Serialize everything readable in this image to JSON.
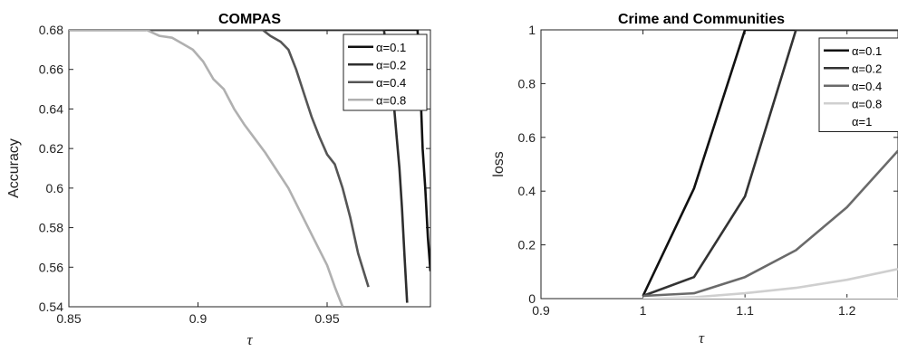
{
  "chart_data": [
    {
      "type": "line",
      "title": "COMPAS",
      "xlabel": "τ",
      "ylabel": "Accuracy",
      "xlim": [
        0.85,
        0.99
      ],
      "ylim": [
        0.54,
        0.68
      ],
      "xticks": [
        "0.85",
        "0.9",
        "0.95"
      ],
      "yticks": [
        "0.54",
        "0.56",
        "0.58",
        "0.6",
        "0.62",
        "0.64",
        "0.66",
        "0.68"
      ],
      "legend_position": "top-right",
      "series": [
        {
          "name": "α=0.1",
          "color": "#111111",
          "x": [
            0.85,
            0.985,
            0.986,
            0.987,
            0.988,
            0.989,
            0.99
          ],
          "y": [
            0.68,
            0.68,
            0.655,
            0.62,
            0.6,
            0.575,
            0.558
          ]
        },
        {
          "name": "α=0.2",
          "color": "#2e2e2e",
          "x": [
            0.85,
            0.972,
            0.974,
            0.976,
            0.977,
            0.978,
            0.979,
            0.98,
            0.981
          ],
          "y": [
            0.68,
            0.68,
            0.66,
            0.64,
            0.625,
            0.61,
            0.59,
            0.565,
            0.542
          ]
        },
        {
          "name": "α=0.4",
          "color": "#555555",
          "x": [
            0.85,
            0.925,
            0.928,
            0.932,
            0.935,
            0.938,
            0.941,
            0.944,
            0.947,
            0.95,
            0.953,
            0.956,
            0.959,
            0.962,
            0.966
          ],
          "y": [
            0.68,
            0.68,
            0.677,
            0.674,
            0.67,
            0.66,
            0.648,
            0.636,
            0.626,
            0.617,
            0.612,
            0.6,
            0.585,
            0.567,
            0.55
          ]
        },
        {
          "name": "α=0.8",
          "color": "#b0b0b0",
          "x": [
            0.85,
            0.88,
            0.885,
            0.89,
            0.894,
            0.898,
            0.902,
            0.906,
            0.91,
            0.914,
            0.918,
            0.922,
            0.926,
            0.93,
            0.935,
            0.94,
            0.945,
            0.95,
            0.953,
            0.956
          ],
          "y": [
            0.68,
            0.68,
            0.677,
            0.676,
            0.673,
            0.67,
            0.664,
            0.655,
            0.65,
            0.64,
            0.632,
            0.625,
            0.618,
            0.61,
            0.6,
            0.587,
            0.574,
            0.561,
            0.55,
            0.54
          ]
        }
      ]
    },
    {
      "type": "line",
      "title": "Crime and Communities",
      "xlabel": "τ",
      "ylabel": "loss",
      "xlim": [
        0.9,
        1.25
      ],
      "ylim": [
        0,
        1
      ],
      "xticks": [
        "0.9",
        "1",
        "1.1",
        "1.2"
      ],
      "yticks": [
        "0",
        "0.2",
        "0.4",
        "0.6",
        "0.8",
        "1"
      ],
      "legend_position": "top-right",
      "series": [
        {
          "name": "α=0.1",
          "color": "#111111",
          "x": [
            1.0,
            1.05,
            1.1,
            1.25
          ],
          "y": [
            0.01,
            0.41,
            1.0,
            1.0
          ]
        },
        {
          "name": "α=0.2",
          "color": "#333333",
          "x": [
            1.0,
            1.05,
            1.1,
            1.15,
            1.25
          ],
          "y": [
            0.01,
            0.08,
            0.38,
            1.0,
            1.0
          ]
        },
        {
          "name": "α=0.4",
          "color": "#6a6a6a",
          "x": [
            1.0,
            1.05,
            1.1,
            1.15,
            1.2,
            1.25
          ],
          "y": [
            0.01,
            0.02,
            0.08,
            0.18,
            0.34,
            0.55
          ]
        },
        {
          "name": "α=0.8",
          "color": "#cfcfcf",
          "x": [
            1.0,
            1.05,
            1.1,
            1.15,
            1.2,
            1.25
          ],
          "y": [
            0.0,
            0.005,
            0.02,
            0.04,
            0.07,
            0.11
          ]
        },
        {
          "name": "α=1",
          "color": "#ffffff",
          "x": [
            1.0,
            1.25
          ],
          "y": [
            0.0,
            0.0
          ]
        }
      ]
    }
  ]
}
